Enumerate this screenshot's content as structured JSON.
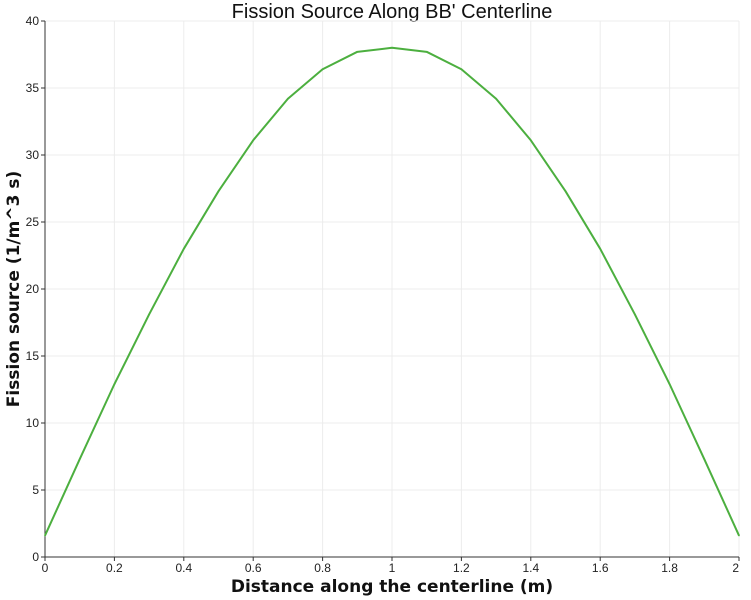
{
  "chart_data": {
    "type": "line",
    "title": "Fission Source Along BB' Centerline",
    "xlabel": "Distance along the centerline (m)",
    "ylabel": "Fission source (1/m^3 s)",
    "xlim": [
      0,
      2
    ],
    "ylim": [
      0,
      40
    ],
    "x_ticks": [
      "0",
      "0.2",
      "0.4",
      "0.6",
      "0.8",
      "1",
      "1.2",
      "1.4",
      "1.6",
      "1.8",
      "2"
    ],
    "y_ticks": [
      "0",
      "5",
      "10",
      "15",
      "20",
      "25",
      "30",
      "35",
      "40"
    ],
    "grid": true,
    "series": [
      {
        "color": "#4caf3f",
        "x": [
          0,
          0.1,
          0.2,
          0.3,
          0.4,
          0.5,
          0.6,
          0.7,
          0.8,
          0.9,
          1.0,
          1.1,
          1.2,
          1.3,
          1.4,
          1.5,
          1.6,
          1.7,
          1.8,
          1.9,
          2.0
        ],
        "y": [
          1.6,
          7.3,
          12.9,
          18.1,
          23.0,
          27.3,
          31.1,
          34.2,
          36.4,
          37.7,
          38.0,
          37.7,
          36.4,
          34.2,
          31.1,
          27.3,
          23.0,
          18.1,
          12.9,
          7.3,
          1.6
        ]
      }
    ]
  }
}
